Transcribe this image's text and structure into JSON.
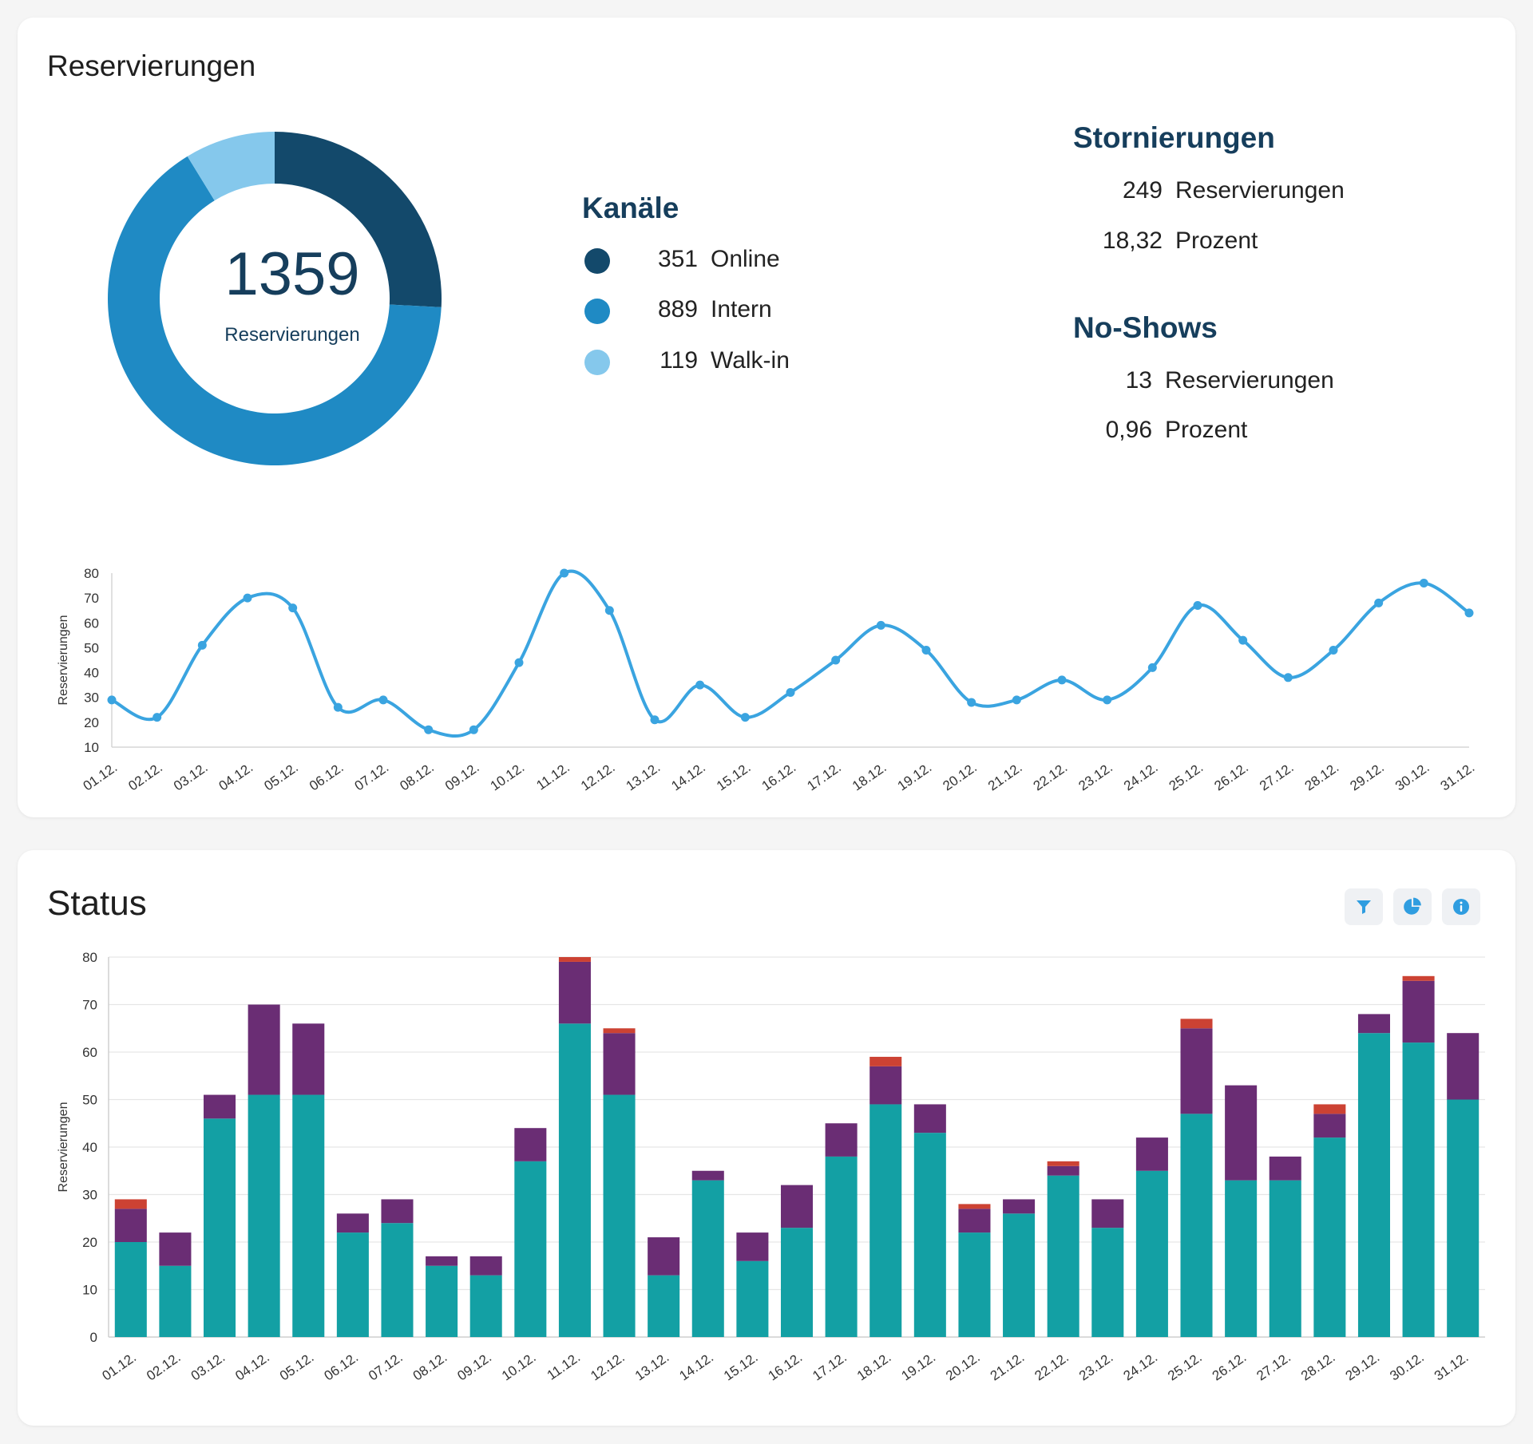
{
  "reservations": {
    "title": "Reservierungen",
    "total": "1359",
    "total_label": "Reservierungen",
    "channels": {
      "title": "Kanäle",
      "items": [
        {
          "value": "351",
          "label": "Online",
          "color": "#13496b"
        },
        {
          "value": "889",
          "label": "Intern",
          "color": "#1f8ac4"
        },
        {
          "value": "119",
          "label": "Walk-in",
          "color": "#85c8ec"
        }
      ]
    },
    "cancellations": {
      "title": "Stornierungen",
      "count": "249",
      "count_label": "Reservierungen",
      "percent": "18,32",
      "percent_label": "Prozent"
    },
    "noshows": {
      "title": "No-Shows",
      "count": "13",
      "count_label": "Reservierungen",
      "percent": "0,96",
      "percent_label": "Prozent"
    }
  },
  "status": {
    "title": "Status",
    "toolbar": [
      {
        "name": "filter-icon"
      },
      {
        "name": "pie-chart-icon"
      },
      {
        "name": "info-icon"
      }
    ]
  },
  "chart_data": [
    {
      "type": "pie",
      "categories": [
        "Online",
        "Intern",
        "Walk-in"
      ],
      "values": [
        351,
        889,
        119
      ],
      "colors": [
        "#13496b",
        "#1f8ac4",
        "#85c8ec"
      ],
      "variant": "donut"
    },
    {
      "type": "line",
      "categories": [
        "01.12.",
        "02.12.",
        "03.12.",
        "04.12.",
        "05.12.",
        "06.12.",
        "07.12.",
        "08.12.",
        "09.12.",
        "10.12.",
        "11.12.",
        "12.12.",
        "13.12.",
        "14.12.",
        "15.12.",
        "16.12.",
        "17.12.",
        "18.12.",
        "19.12.",
        "20.12.",
        "21.12.",
        "22.12.",
        "23.12.",
        "24.12.",
        "25.12.",
        "26.12.",
        "27.12.",
        "28.12.",
        "29.12.",
        "30.12.",
        "31.12."
      ],
      "values": [
        29,
        22,
        51,
        70,
        66,
        26,
        29,
        17,
        17,
        44,
        80,
        65,
        21,
        35,
        22,
        32,
        45,
        59,
        49,
        28,
        29,
        37,
        29,
        42,
        67,
        53,
        38,
        49,
        68,
        76,
        64
      ],
      "ylabel": "Reservierungen",
      "ylim": [
        10,
        80
      ],
      "yticks": [
        10,
        20,
        30,
        40,
        50,
        60,
        70,
        80
      ],
      "color": "#3aa4e0",
      "grid": false
    },
    {
      "type": "bar",
      "stacked": true,
      "categories": [
        "01.12.",
        "02.12.",
        "03.12.",
        "04.12.",
        "05.12.",
        "06.12.",
        "07.12.",
        "08.12.",
        "09.12.",
        "10.12.",
        "11.12.",
        "12.12.",
        "13.12.",
        "14.12.",
        "15.12.",
        "16.12.",
        "17.12.",
        "18.12.",
        "19.12.",
        "20.12.",
        "21.12.",
        "22.12.",
        "23.12.",
        "24.12.",
        "25.12.",
        "26.12.",
        "27.12.",
        "28.12.",
        "29.12.",
        "30.12.",
        "31.12."
      ],
      "series": [
        {
          "values": [
            20,
            15,
            46,
            51,
            51,
            22,
            24,
            15,
            13,
            37,
            66,
            51,
            13,
            33,
            16,
            23,
            38,
            49,
            43,
            22,
            26,
            34,
            23,
            35,
            47,
            33,
            33,
            42,
            64,
            62,
            50
          ],
          "color": "#13a0a4"
        },
        {
          "values": [
            7,
            7,
            5,
            19,
            15,
            4,
            5,
            2,
            4,
            7,
            13,
            13,
            8,
            2,
            6,
            9,
            7,
            8,
            6,
            5,
            3,
            2,
            6,
            7,
            18,
            20,
            5,
            5,
            4,
            13,
            14
          ],
          "color": "#6a2d74"
        },
        {
          "values": [
            2,
            0,
            0,
            0,
            0,
            0,
            0,
            0,
            0,
            0,
            1,
            1,
            0,
            0,
            0,
            0,
            0,
            2,
            0,
            1,
            0,
            1,
            0,
            0,
            2,
            0,
            0,
            2,
            0,
            1,
            0
          ],
          "color": "#cc4233"
        }
      ],
      "ylabel": "Reservierungen",
      "ylim": [
        0,
        80
      ],
      "yticks": [
        0,
        10,
        20,
        30,
        40,
        50,
        60,
        70,
        80
      ],
      "grid": true
    }
  ]
}
